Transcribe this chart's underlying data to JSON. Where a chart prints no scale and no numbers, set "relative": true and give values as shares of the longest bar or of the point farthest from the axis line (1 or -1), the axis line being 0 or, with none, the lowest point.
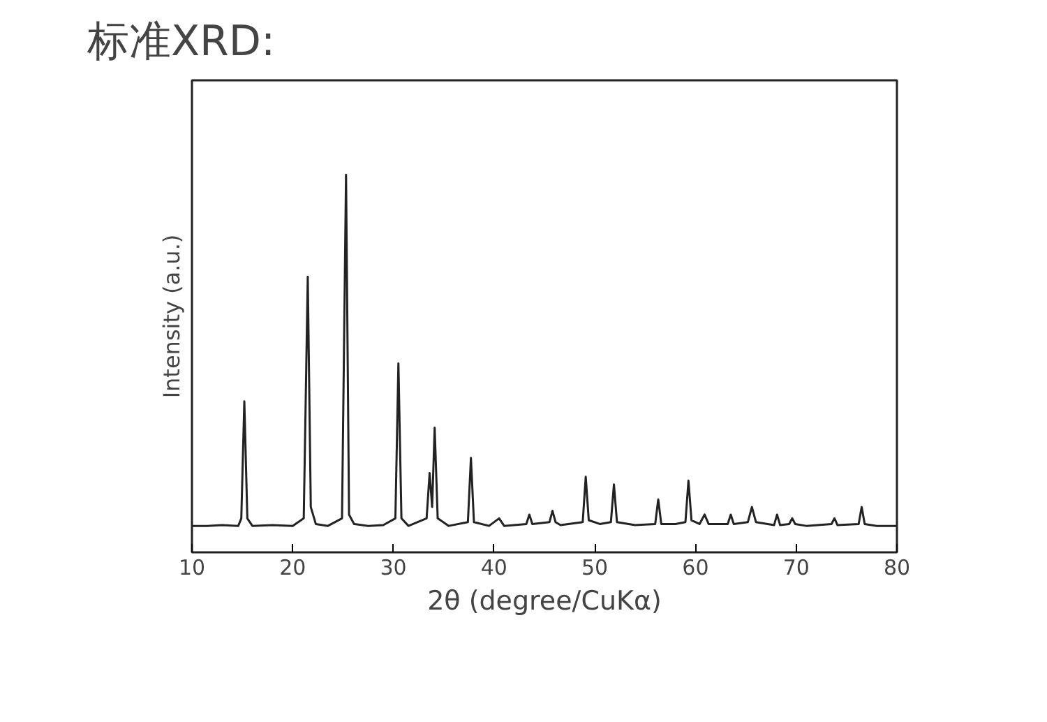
{
  "chart_data": {
    "type": "line",
    "title": "标准XRD:",
    "xlabel": "2θ (degree/CuKα)",
    "ylabel": "Intensity (a.u.)",
    "relative": true,
    "xlim": [
      10,
      80
    ],
    "xticks": [
      10,
      20,
      30,
      40,
      50,
      60,
      70,
      80
    ],
    "grid": false,
    "marker": "none",
    "line_style": "solid",
    "series": [
      {
        "color": "#222222",
        "x": [
          10,
          11.5,
          13,
          14.6,
          14.9,
          15.2,
          15.5,
          16,
          18,
          20,
          21.1,
          21.5,
          21.8,
          22.3,
          23.5,
          24.9,
          25.3,
          25.6,
          26.1,
          27.5,
          29,
          30.2,
          30.5,
          30.8,
          31.5,
          33.3,
          33.6,
          33.85,
          34.1,
          34.4,
          35.5,
          37.4,
          37.7,
          38,
          39.5,
          40.5,
          41,
          43.2,
          43.5,
          43.8,
          45.5,
          45.8,
          46.1,
          46.6,
          48.8,
          49.1,
          49.4,
          50.5,
          51.6,
          51.9,
          52.2,
          54,
          56,
          56.3,
          56.6,
          58,
          59,
          59.3,
          59.6,
          60.4,
          60.9,
          61.3,
          63.2,
          63.5,
          63.8,
          65.2,
          65.6,
          66,
          67.8,
          68.1,
          68.4,
          69.3,
          69.6,
          69.9,
          71,
          73.5,
          73.8,
          74.1,
          76.2,
          76.5,
          76.8,
          78,
          80
        ],
        "values": [
          0.07,
          0.07,
          0.072,
          0.07,
          0.09,
          0.4,
          0.09,
          0.07,
          0.072,
          0.07,
          0.09,
          0.73,
          0.12,
          0.075,
          0.07,
          0.09,
          1.0,
          0.1,
          0.075,
          0.07,
          0.072,
          0.09,
          0.5,
          0.09,
          0.07,
          0.09,
          0.21,
          0.12,
          0.33,
          0.09,
          0.07,
          0.08,
          0.25,
          0.08,
          0.07,
          0.09,
          0.07,
          0.075,
          0.1,
          0.075,
          0.08,
          0.11,
          0.08,
          0.072,
          0.08,
          0.2,
          0.085,
          0.075,
          0.08,
          0.18,
          0.08,
          0.072,
          0.075,
          0.14,
          0.075,
          0.075,
          0.08,
          0.19,
          0.085,
          0.075,
          0.1,
          0.075,
          0.075,
          0.1,
          0.075,
          0.08,
          0.12,
          0.08,
          0.072,
          0.1,
          0.072,
          0.075,
          0.09,
          0.075,
          0.07,
          0.075,
          0.09,
          0.072,
          0.075,
          0.12,
          0.075,
          0.07,
          0.07
        ]
      }
    ]
  }
}
